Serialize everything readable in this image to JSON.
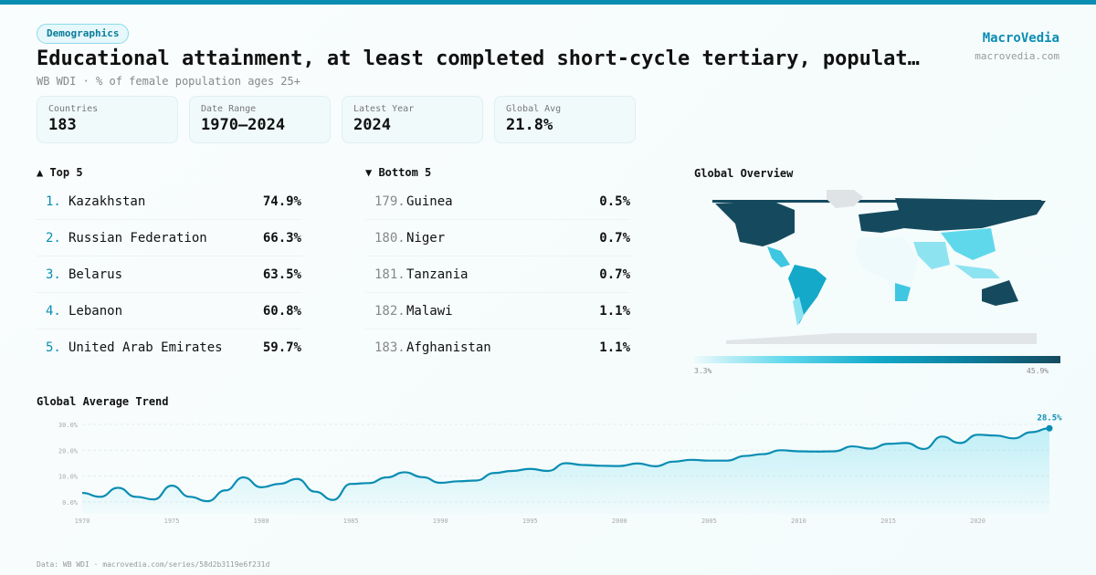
{
  "header": {
    "badge": "Demographics",
    "title": "Educational attainment, at least completed short-cycle tertiary, populat…",
    "subtitle": "WB WDI · % of female population ages 25+",
    "brand": "MacroVedia",
    "brand_url": "macrovedia.com"
  },
  "stats": [
    {
      "label": "Countries",
      "value": "183"
    },
    {
      "label": "Date Range",
      "value": "1970–2024"
    },
    {
      "label": "Latest Year",
      "value": "2024"
    },
    {
      "label": "Global Avg",
      "value": "21.8%"
    }
  ],
  "top": {
    "title": "▲ Top 5",
    "items": [
      {
        "rank": "1.",
        "name": "Kazakhstan",
        "value": "74.9%"
      },
      {
        "rank": "2.",
        "name": "Russian Federation",
        "value": "66.3%"
      },
      {
        "rank": "3.",
        "name": "Belarus",
        "value": "63.5%"
      },
      {
        "rank": "4.",
        "name": "Lebanon",
        "value": "60.8%"
      },
      {
        "rank": "5.",
        "name": "United Arab Emirates",
        "value": "59.7%"
      }
    ]
  },
  "bottom": {
    "title": "▼ Bottom 5",
    "items": [
      {
        "rank": "179.",
        "name": "Guinea",
        "value": "0.5%"
      },
      {
        "rank": "180.",
        "name": "Niger",
        "value": "0.7%"
      },
      {
        "rank": "181.",
        "name": "Tanzania",
        "value": "0.7%"
      },
      {
        "rank": "182.",
        "name": "Malawi",
        "value": "1.1%"
      },
      {
        "rank": "183.",
        "name": "Afghanistan",
        "value": "1.1%"
      }
    ]
  },
  "map": {
    "title": "Global Overview",
    "legend_min": "3.3%",
    "legend_max": "45.9%",
    "colors": [
      "#eefafc",
      "#5fd8ec",
      "#14a9c9",
      "#154a5e"
    ]
  },
  "chart_data": {
    "type": "area",
    "title": "Global Average Trend",
    "ylim": [
      0,
      30
    ],
    "yticks": [
      "0.0%",
      "10.0%",
      "20.0%",
      "30.0%"
    ],
    "xticks": [
      "1970",
      "1975",
      "1980",
      "1985",
      "1990",
      "1995",
      "2000",
      "2005",
      "2010",
      "2015",
      "2020"
    ],
    "x": [
      1970,
      1971,
      1972,
      1973,
      1974,
      1975,
      1976,
      1977,
      1978,
      1979,
      1980,
      1981,
      1982,
      1983,
      1984,
      1985,
      1986,
      1987,
      1988,
      1989,
      1990,
      1991,
      1992,
      1993,
      1994,
      1995,
      1996,
      1997,
      1998,
      1999,
      2000,
      2001,
      2002,
      2003,
      2004,
      2005,
      2006,
      2007,
      2008,
      2009,
      2010,
      2011,
      2012,
      2013,
      2014,
      2015,
      2016,
      2017,
      2018,
      2019,
      2020,
      2021,
      2022,
      2023,
      2024
    ],
    "y": [
      3.5,
      2,
      5.5,
      2,
      1,
      6.3,
      2,
      0.3,
      4.5,
      9.5,
      5.7,
      7,
      8.9,
      4,
      0.8,
      7,
      7.3,
      9.5,
      11.5,
      9.6,
      7.4,
      8,
      8.3,
      11.2,
      12,
      12.8,
      12,
      15,
      14.3,
      14,
      13.9,
      14.9,
      13.8,
      15.6,
      16.3,
      16,
      16,
      17.8,
      18.5,
      20,
      19.6,
      19.5,
      19.6,
      21.5,
      20.6,
      22.5,
      22.8,
      20.5,
      25.3,
      22.8,
      26,
      25.7,
      24.6,
      27,
      28.5
    ],
    "last_label": "28.5%",
    "color": "#0a8db3"
  },
  "footer": "Data: WB WDI · macrovedia.com/series/58d2b3119e6f231d"
}
